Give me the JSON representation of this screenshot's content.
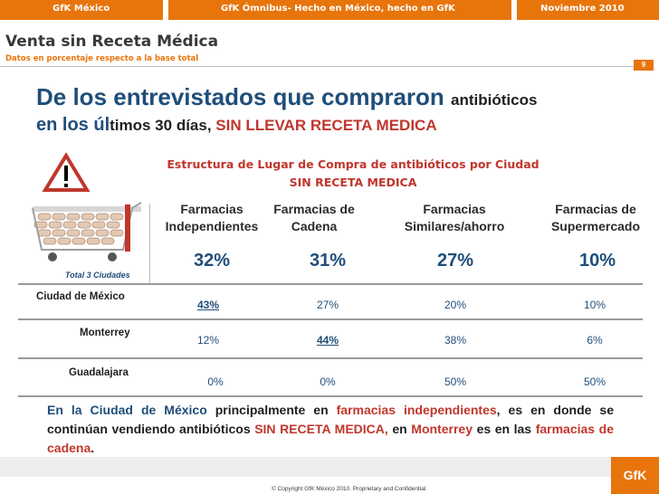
{
  "header": {
    "left": "GfK México",
    "center": "GfK Ómnibus- Hecho en México, hecho en GfK",
    "right": "Noviembre 2010"
  },
  "title": "Venta sin Receta Médica",
  "subtitle": "Datos en porcentaje respecto a la base total",
  "page_number": "9",
  "headline": {
    "part1": "De los entrevistados que compraron ",
    "part2": "antibióticos",
    "part3": "en los úl",
    "part4": "timos 30 días, ",
    "part5": "SIN LLEVAR RECETA MEDICA"
  },
  "structure_title": {
    "line1": "Estructura de Lugar de Compra de antibióticos por Ciudad",
    "line2": "SIN RECETA MEDICA"
  },
  "columns": [
    {
      "line1": "Farmacias",
      "line2": "Independientes"
    },
    {
      "line1": "Farmacias de",
      "line2": "Cadena"
    },
    {
      "line1": "Farmacias",
      "line2": "Similares/ahorro"
    },
    {
      "line1": "Farmacias de",
      "line2": "Supermercado"
    }
  ],
  "totals_label": "Total 3 Ciudades",
  "totals": [
    "32%",
    "31%",
    "27%",
    "10%"
  ],
  "rows": [
    {
      "city": "Ciudad de México",
      "values": [
        "43%",
        "27%",
        "20%",
        "10%"
      ]
    },
    {
      "city": "Monterrey",
      "values": [
        "12%",
        "44%",
        "38%",
        "6%"
      ]
    },
    {
      "city": "Guadalajara",
      "values": [
        "0%",
        "0%",
        "50%",
        "50%"
      ]
    }
  ],
  "conclusion": {
    "t1": "En la Ciudad de México",
    "t2": " principalmente en ",
    "t3": "farmacias independientes",
    "t4": ", es en donde se continúan vendiendo antibióticos ",
    "t5": "SIN RECETA MEDICA,",
    "t6": " en ",
    "t7": "Monterrey",
    "t8": " es en las ",
    "t9": "farmacias de cadena",
    "t10": "."
  },
  "copyright": "© Copyright GfK México 2010. Proprietary and Confidential",
  "logo": "GfK",
  "colors": {
    "orange": "#e8740c",
    "blue": "#1f4e79",
    "red": "#c0362c"
  },
  "icons": [
    "warning-sign-icon",
    "shopping-cart-with-pills-icon"
  ]
}
